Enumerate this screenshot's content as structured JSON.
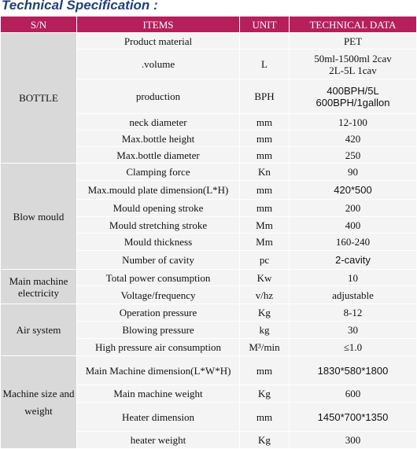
{
  "title": "Technical Specification :",
  "headers": {
    "sn": "S/N",
    "items": "ITEMS",
    "unit": "UNIT",
    "data": "TECHNICAL DATA"
  },
  "groups": {
    "bottle": "BOTTLE",
    "blow_mould": "Blow mould",
    "main_machine_electricity": "Main machine electricity",
    "air_system": "Air system",
    "machine_size": "Machine size and weight"
  },
  "rows": [
    {
      "item": "Product material",
      "unit": "",
      "data": "PET"
    },
    {
      "item": ".volume",
      "unit": "L",
      "data_line1": "50ml-1500ml 2cav",
      "data_line2": "2L-5L 1cav"
    },
    {
      "item": "production",
      "unit": "BPH",
      "data_line1": "400BPH/5L",
      "data_line2": "600BPH/1gallon"
    },
    {
      "item": "neck diameter",
      "unit": "mm",
      "data": "12-100"
    },
    {
      "item": "Max.bottle height",
      "unit": "mm",
      "data": "420"
    },
    {
      "item": "Max.bottle diameter",
      "unit": "mm",
      "data": "250"
    },
    {
      "item": "Clamping force",
      "unit": "Kn",
      "data": "90"
    },
    {
      "item": "Max.mould plate dimension(L*H)",
      "unit": "mm",
      "data": "420*500"
    },
    {
      "item": "Mould opening stroke",
      "unit": "mm",
      "data": "200"
    },
    {
      "item": "Mould stretching stroke",
      "unit": "Mm",
      "data": "400"
    },
    {
      "item": "Mould thickness",
      "unit": "Mm",
      "data": "160-240"
    },
    {
      "item": "Number of cavity",
      "unit": "pc",
      "data": "2-cavity"
    },
    {
      "item": "Total power consumption",
      "unit": "Kw",
      "data": "10"
    },
    {
      "item": "Voltage/frequency",
      "unit": "v/hz",
      "data": "adjustable"
    },
    {
      "item": "Operation pressure",
      "unit": "Kg",
      "data": "8-12"
    },
    {
      "item": "Blowing pressure",
      "unit": "kg",
      "data": "30"
    },
    {
      "item": "High pressure air consumption",
      "unit": "M³/min",
      "data": "≤1.0"
    },
    {
      "item": "Main Machine dimension(L*W*H)",
      "unit": "mm",
      "data": "1830*580*1800"
    },
    {
      "item": "Main machine weight",
      "unit": "Kg",
      "data": "600"
    },
    {
      "item": "Heater dimension",
      "unit": "mm",
      "data": "1450*700*1350"
    },
    {
      "item": "heater weight",
      "unit": "Kg",
      "data": "300"
    }
  ]
}
